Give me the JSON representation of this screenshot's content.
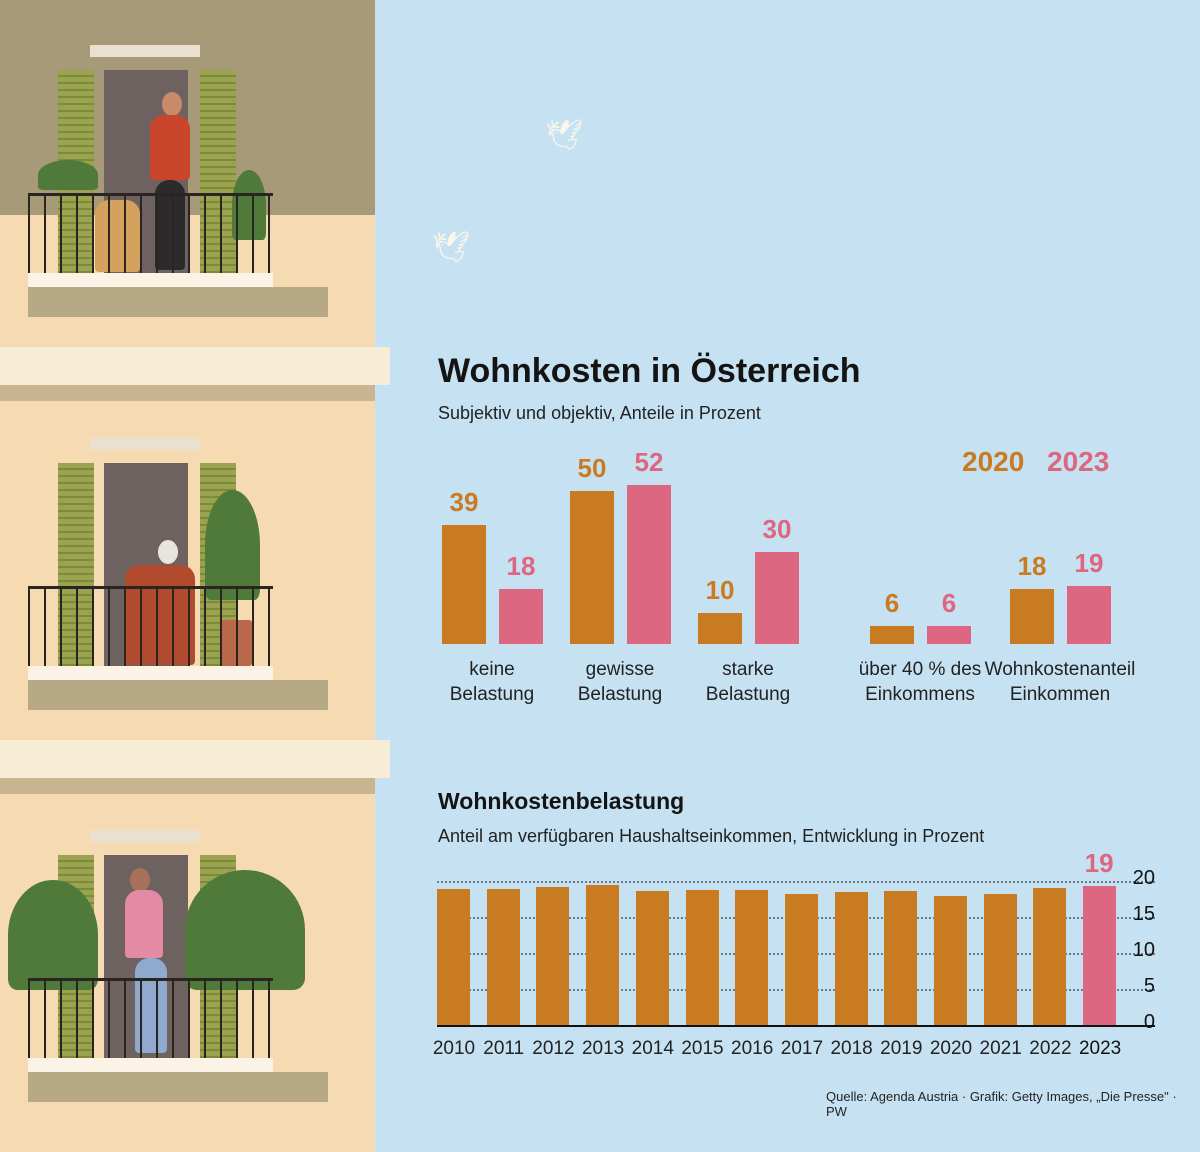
{
  "chart_data": [
    {
      "type": "bar",
      "title": "Wohnkosten in Österreich",
      "subtitle": "Subjektiv und objektiv, Anteile in Prozent",
      "legend": [
        "2020",
        "2023"
      ],
      "legend_placement": "top-right",
      "colors": {
        "2020": "#c97b22",
        "2023": "#dd6680"
      },
      "categories": [
        [
          "keine",
          "Belastung"
        ],
        [
          "gewisse",
          "Belastung"
        ],
        [
          "starke",
          "Belastung"
        ],
        [
          "über 40 % des",
          "Einkommens"
        ],
        [
          "Wohnkostenanteil",
          "Einkommen"
        ]
      ],
      "series": [
        {
          "name": "2020",
          "values": [
            39,
            50,
            10,
            6,
            18
          ]
        },
        {
          "name": "2023",
          "values": [
            18,
            52,
            30,
            6,
            19
          ]
        }
      ]
    },
    {
      "type": "bar",
      "title": "Wohnkostenbelastung",
      "subtitle": "Anteil am verfügbaren Haushaltseinkommen, Entwicklung in Prozent",
      "categories": [
        "2010",
        "2011",
        "2012",
        "2013",
        "2014",
        "2015",
        "2016",
        "2017",
        "2018",
        "2019",
        "2020",
        "2021",
        "2022",
        "2023"
      ],
      "values": [
        18.9,
        18.9,
        19.2,
        19.5,
        18.6,
        18.8,
        18.8,
        18.2,
        18.5,
        18.6,
        17.9,
        18.2,
        19.0,
        19.3
      ],
      "highlight": {
        "category": "2023",
        "label": "19",
        "color": "#dd6680"
      },
      "bar_color": "#c97b22",
      "yticks": [
        "0",
        "5",
        "10",
        "15",
        "20"
      ],
      "ylim": [
        0,
        20
      ],
      "grid": true
    }
  ],
  "source": "Quelle: Agenda Austria · Grafik: Getty Images, „Die Presse\" · PW"
}
